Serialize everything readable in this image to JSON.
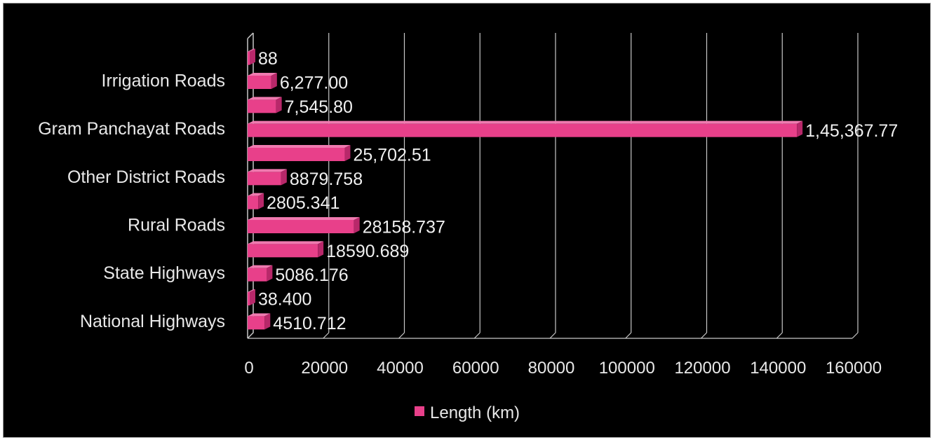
{
  "chart_data": {
    "type": "bar",
    "orientation": "horizontal",
    "style": "3d",
    "series": [
      {
        "name": "Length (km)",
        "color": "#e8408a",
        "values": [
          4510.712,
          38.4,
          5086.176,
          18590.689,
          28158.737,
          2805.341,
          8879.758,
          25702.51,
          145367.77,
          7545.8,
          6277.0,
          88
        ]
      }
    ],
    "data_labels": [
      "4510.712",
      "38.400",
      "5086.176",
      "18590.689",
      "28158.737",
      "2805.341",
      "8879.758",
      "25,702.51",
      "1,45,367.77",
      "7,545.80",
      "6,277.00",
      "88"
    ],
    "category_labels": [
      {
        "label": "National Highways",
        "bar_index": 0
      },
      {
        "label": "State Highways",
        "bar_index": 2
      },
      {
        "label": "Rural Roads",
        "bar_index": 4
      },
      {
        "label": "Other District Roads",
        "bar_index": 6
      },
      {
        "label": "Gram Panchayat Roads",
        "bar_index": 8
      },
      {
        "label": "Irrigation Roads",
        "bar_index": 10
      }
    ],
    "x_ticks": [
      "0",
      "20000",
      "40000",
      "60000",
      "80000",
      "100000",
      "120000",
      "140000",
      "160000"
    ],
    "xlim": [
      0,
      160000
    ],
    "grid": "vertical",
    "legend": "bottom",
    "colors": {
      "background": "#000000",
      "bar": "#e8408a",
      "bar_top": "#f07ab0",
      "bar_side": "#b8286a",
      "grid": "#c8c8c8",
      "text": "#e8e8e8"
    }
  }
}
